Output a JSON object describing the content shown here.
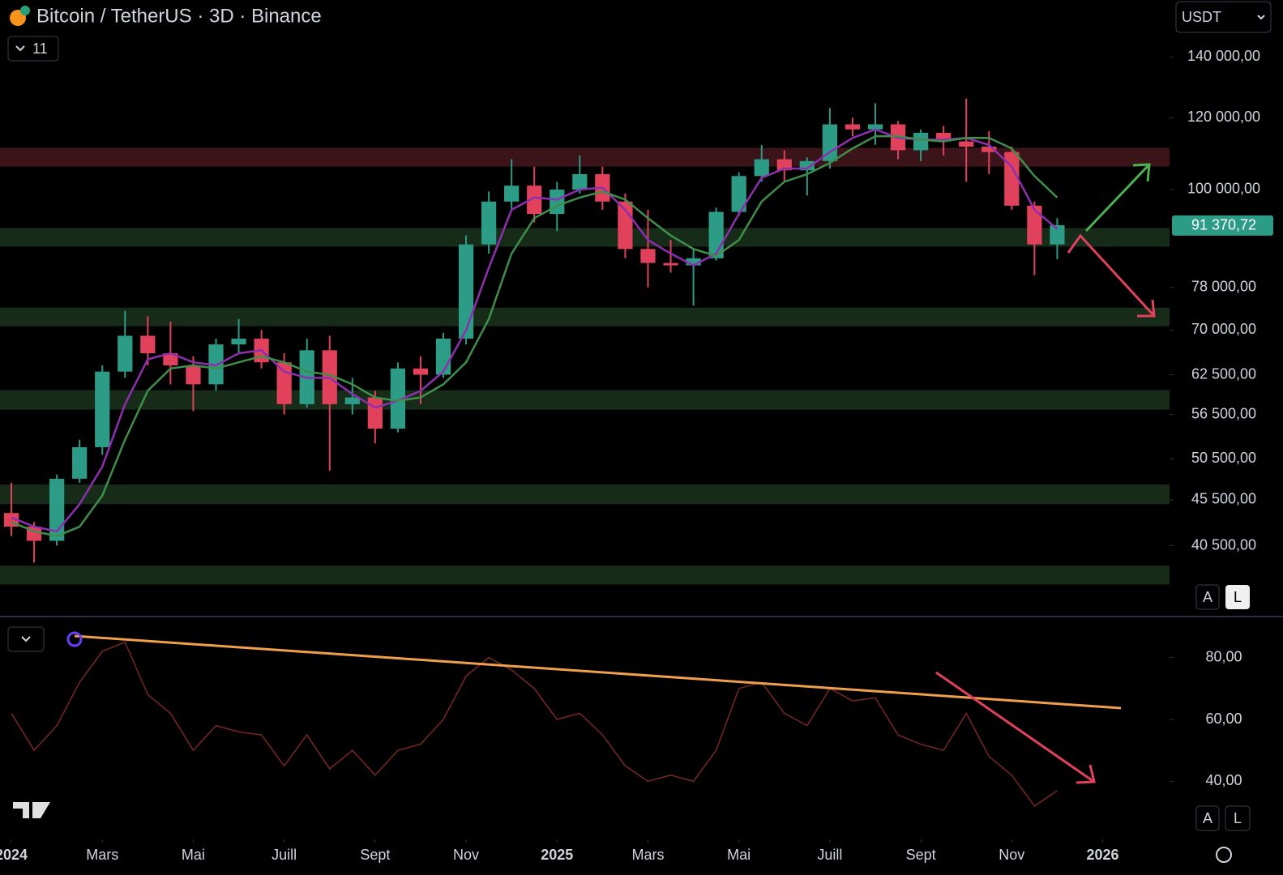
{
  "header": {
    "symbol_title": "Bitcoin / TetherUS · 3D · Binance",
    "indicator_count": 11,
    "currency": "USDT",
    "scale_buttons": [
      "A",
      "L"
    ]
  },
  "chart_data": [
    {
      "type": "candlestick",
      "log_scale": true,
      "x": [
        0,
        0.5,
        1,
        1.5,
        2,
        2.5,
        3,
        3.5,
        4,
        4.5,
        5,
        5.5,
        6,
        6.5,
        7,
        7.5,
        8,
        8.5,
        9,
        9.5,
        10,
        10.5,
        11,
        11.5,
        12,
        12.5,
        13,
        13.5,
        14,
        14.5,
        15,
        15.5,
        16,
        16.5,
        17,
        17.5,
        18,
        18.5,
        19,
        19.5,
        20,
        20.5,
        21,
        21.5,
        22,
        22.5,
        23
      ],
      "open": [
        44000,
        42500,
        41000,
        48000,
        52000,
        63000,
        69000,
        66000,
        64000,
        61000,
        67500,
        68500,
        64500,
        58000,
        66500,
        58000,
        59000,
        54500,
        63500,
        62500,
        68500,
        87000,
        97000,
        101000,
        94000,
        100000,
        104000,
        97000,
        86000,
        83000,
        82500,
        84000,
        94500,
        103500,
        108000,
        105000,
        107500,
        118000,
        116500,
        118000,
        110500,
        115500,
        113000,
        111500,
        110000,
        96000,
        87000
      ],
      "high": [
        47500,
        43000,
        48500,
        53000,
        64000,
        73500,
        72500,
        71500,
        65500,
        68500,
        72000,
        70000,
        66000,
        68500,
        69000,
        62000,
        60000,
        64500,
        65500,
        69500,
        89000,
        99500,
        108000,
        106000,
        102000,
        109000,
        106000,
        99000,
        95000,
        88000,
        86000,
        95500,
        104500,
        112000,
        110500,
        108500,
        123000,
        120000,
        124500,
        119000,
        116500,
        117500,
        126000,
        116000,
        111500,
        97000,
        93000
      ],
      "low": [
        41500,
        38800,
        40500,
        47500,
        51000,
        62000,
        64000,
        61000,
        57000,
        60000,
        66000,
        63500,
        56500,
        57500,
        49000,
        56500,
        52500,
        54000,
        58000,
        62000,
        67500,
        85000,
        95000,
        92000,
        90000,
        99000,
        95000,
        84000,
        78000,
        81000,
        74500,
        83500,
        93500,
        102000,
        102000,
        98500,
        105500,
        114500,
        112000,
        108000,
        107500,
        109000,
        102000,
        104000,
        95000,
        80500,
        83800
      ],
      "close": [
        42500,
        41000,
        48000,
        52000,
        63000,
        69000,
        66000,
        64000,
        61000,
        67500,
        68500,
        64500,
        58000,
        66500,
        58000,
        59000,
        54500,
        63500,
        62500,
        68500,
        87000,
        97000,
        101000,
        94000,
        100000,
        104000,
        97000,
        86000,
        83000,
        82500,
        84000,
        94500,
        103500,
        108000,
        105000,
        107500,
        118000,
        116500,
        118000,
        110500,
        115500,
        113000,
        111500,
        110000,
        96000,
        87000,
        91370.72
      ],
      "up_color": "#2c9c86",
      "down_color": "#e2415c",
      "moving_averages": [
        {
          "color": "#8e2fb0",
          "values": [
            43500,
            42500,
            42000,
            45000,
            49500,
            58000,
            65000,
            66000,
            64500,
            64000,
            66000,
            66500,
            63000,
            62000,
            62000,
            59500,
            57500,
            58500,
            60000,
            63000,
            70000,
            82000,
            95000,
            98000,
            97500,
            100000,
            100500,
            95000,
            88000,
            85000,
            82500,
            85000,
            94000,
            103000,
            105500,
            105500,
            110000,
            114000,
            116500,
            114000,
            113500,
            113500,
            114000,
            112000,
            106000,
            95000,
            90500
          ]
        },
        {
          "color": "#3f8f4a",
          "values": [
            43000,
            42000,
            41500,
            42500,
            46000,
            53000,
            60000,
            63500,
            64000,
            63500,
            64500,
            65500,
            64500,
            63000,
            62500,
            61000,
            59000,
            58500,
            59000,
            61000,
            64500,
            72000,
            85000,
            93000,
            96000,
            98000,
            99500,
            97500,
            93000,
            89000,
            86000,
            84500,
            88000,
            97000,
            102000,
            104000,
            107000,
            111000,
            114500,
            114500,
            113500,
            113000,
            114000,
            114000,
            111000,
            103500,
            98000
          ]
        }
      ],
      "bands": [
        {
          "from": 106000,
          "to": 111200,
          "color": "#3a1418"
        },
        {
          "from": 86500,
          "to": 90700,
          "color": "#162b18"
        },
        {
          "from": 70700,
          "to": 74100,
          "color": "#162b18"
        },
        {
          "from": 57200,
          "to": 60100,
          "color": "#162b18"
        },
        {
          "from": 45000,
          "to": 47300,
          "color": "#162b18"
        },
        {
          "from": 36700,
          "to": 38500,
          "color": "#162b18"
        }
      ],
      "last_price": {
        "value": 91370.72,
        "label": "91 370,72"
      },
      "xlim": [
        -0.25,
        25.47
      ],
      "ylim": [
        33900,
        161800
      ],
      "yticks": [
        {
          "value": 140000,
          "label": "140 000,00"
        },
        {
          "value": 120000,
          "label": "120 000,00"
        },
        {
          "value": 100000,
          "label": "100 000,00"
        },
        {
          "value": 78000,
          "label": "78 000,00"
        },
        {
          "value": 70000,
          "label": "70 000,00"
        },
        {
          "value": 62500,
          "label": "62 500,00"
        },
        {
          "value": 56500,
          "label": "56 500,00"
        },
        {
          "value": 50500,
          "label": "50 500,00"
        },
        {
          "value": 45500,
          "label": "45 500,00"
        },
        {
          "value": 40500,
          "label": "40 500,00"
        }
      ]
    },
    {
      "type": "line",
      "color": "#7a2626",
      "x": [
        0,
        0.5,
        1,
        1.5,
        2,
        2.5,
        3,
        3.5,
        4,
        4.5,
        5,
        5.5,
        6,
        6.5,
        7,
        7.5,
        8,
        8.5,
        9,
        9.5,
        10,
        10.5,
        11,
        11.5,
        12,
        12.5,
        13,
        13.5,
        14,
        14.5,
        15,
        15.5,
        16,
        16.5,
        17,
        17.5,
        18,
        18.5,
        19,
        19.5,
        20,
        20.5,
        21,
        21.5,
        22,
        22.5,
        23
      ],
      "values": [
        62,
        50,
        58,
        72,
        82,
        85,
        68,
        62,
        50,
        58,
        56,
        55,
        45,
        55,
        44,
        50,
        42,
        50,
        52,
        60,
        74,
        80,
        76,
        70,
        60,
        62,
        55,
        45,
        40,
        42,
        40,
        50,
        70,
        72,
        62,
        58,
        70,
        66,
        67,
        55,
        52,
        50,
        62,
        48,
        42,
        32,
        37
      ],
      "xlim": [
        -0.25,
        25.47
      ],
      "ylim": [
        21.5,
        93
      ],
      "yticks": [
        {
          "value": 80,
          "label": "80,00"
        },
        {
          "value": 60,
          "label": "60,00"
        },
        {
          "value": 40,
          "label": "40,00"
        }
      ],
      "xticks": [
        {
          "value": 0,
          "label": "2024"
        },
        {
          "value": 2,
          "label": "Mars"
        },
        {
          "value": 4,
          "label": "Mai"
        },
        {
          "value": 6,
          "label": "Juill"
        },
        {
          "value": 8,
          "label": "Sept"
        },
        {
          "value": 10,
          "label": "Nov"
        },
        {
          "value": 12,
          "label": "2025"
        },
        {
          "value": 14,
          "label": "Mars"
        },
        {
          "value": 16,
          "label": "Mai"
        },
        {
          "value": 18,
          "label": "Juill"
        },
        {
          "value": 20,
          "label": "Sept"
        },
        {
          "value": 22,
          "label": "Nov"
        },
        {
          "value": 24,
          "label": "2026"
        }
      ]
    }
  ]
}
